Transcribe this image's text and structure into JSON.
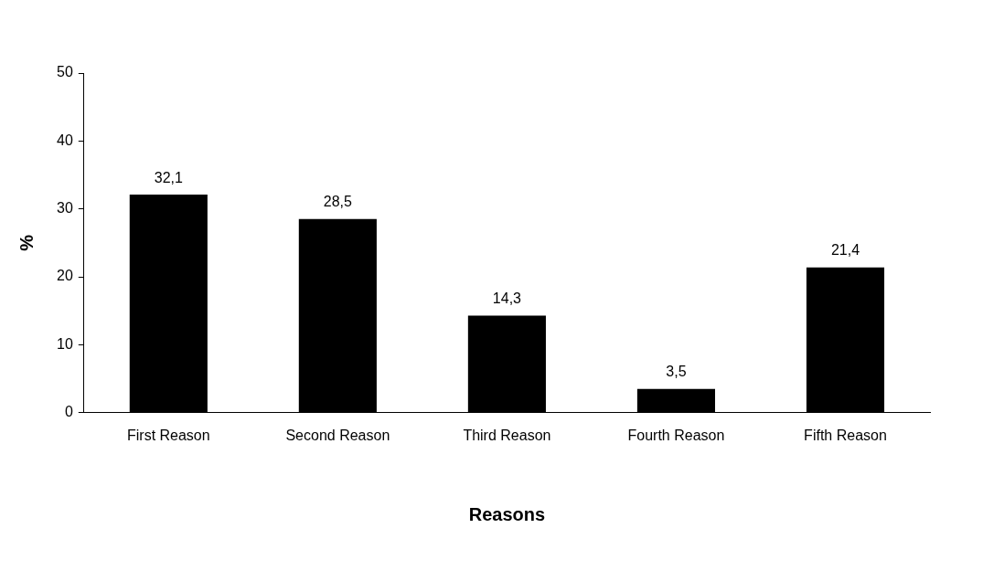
{
  "chart_data": {
    "type": "bar",
    "xlabel": "Reasons",
    "ylabel": "%",
    "categories": [
      "First Reason",
      "Second Reason",
      "Third Reason",
      "Fourth Reason",
      "Fifth Reason"
    ],
    "values": [
      32.1,
      28.5,
      14.3,
      3.5,
      21.4
    ],
    "value_labels": [
      "32,1",
      "28,5",
      "14,3",
      "3,5",
      "21,4"
    ],
    "color": "#000000",
    "ylim": [
      0,
      50
    ],
    "yticks": [
      0,
      10,
      20,
      30,
      40,
      50
    ],
    "grid": false,
    "legend": false
  }
}
